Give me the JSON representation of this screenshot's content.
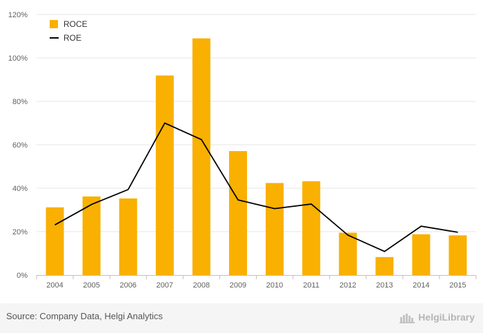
{
  "chart_data": {
    "type": "bar",
    "categories": [
      "2004",
      "2005",
      "2006",
      "2007",
      "2008",
      "2009",
      "2010",
      "2011",
      "2012",
      "2013",
      "2014",
      "2015"
    ],
    "series": [
      {
        "name": "ROCE",
        "type": "bar",
        "color": "#f9b000",
        "values": [
          31.2,
          36.2,
          35.3,
          91.9,
          109.0,
          57.1,
          42.4,
          43.2,
          19.5,
          8.3,
          18.8,
          18.3
        ]
      },
      {
        "name": "ROE",
        "type": "line",
        "color": "#000000",
        "values": [
          23.1,
          32.5,
          39.4,
          70.0,
          62.4,
          34.6,
          30.6,
          32.7,
          18.4,
          10.9,
          22.5,
          19.7
        ]
      }
    ],
    "yticks": [
      "0%",
      "20%",
      "40%",
      "60%",
      "80%",
      "100%",
      "120%"
    ],
    "ylim": [
      0,
      120
    ],
    "grid": true,
    "legend_position": "top-left"
  },
  "footer": {
    "source": "Source: Company Data, Helgi Analytics",
    "brand": "HelgiLibrary"
  },
  "colors": {
    "bar": "#f9b000",
    "line": "#000000",
    "grid": "#e6e6e6"
  },
  "icons": {
    "brand_logo": "helgi-library-logo-icon"
  }
}
